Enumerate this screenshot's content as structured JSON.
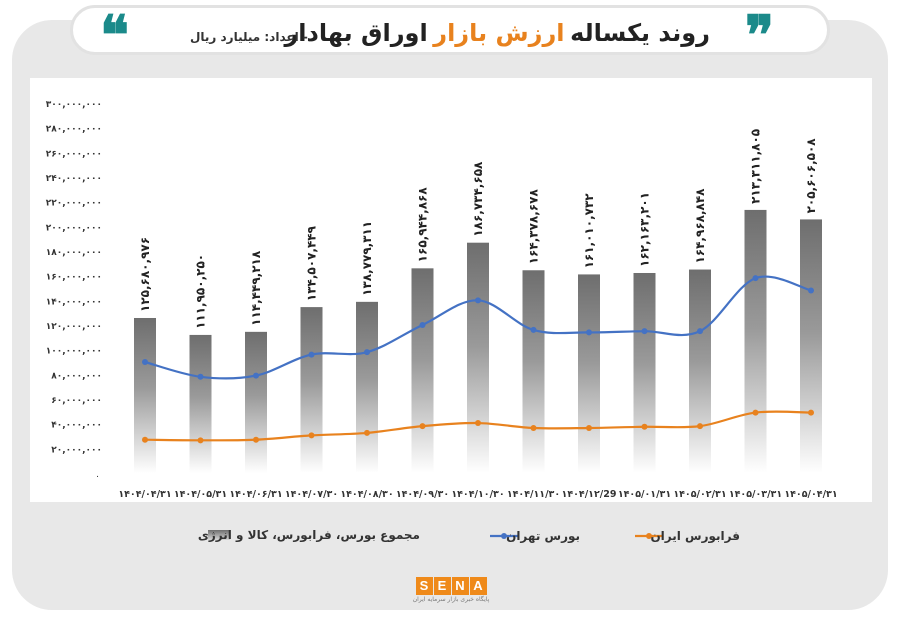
{
  "header": {
    "title_main_1": "روند یکساله",
    "title_accent": "ارزش بازار",
    "title_main_2": "اوراق بهادار",
    "subtitle": "- اعداد: میلیارد ریال"
  },
  "colors": {
    "teal": "#1b8a8a",
    "orange": "#e8821e",
    "blue": "#4472c4",
    "bar": "#7f7f7f"
  },
  "chart_data": {
    "type": "bar",
    "categories": [
      "۱۴۰۴/۰۴/۳۱",
      "۱۴۰۴/۰۵/۳۱",
      "۱۴۰۴/۰۶/۳۱",
      "۱۴۰۴/۰۷/۳۰",
      "۱۴۰۴/۰۸/۳۰",
      "۱۴۰۴/۰۹/۳۰",
      "۱۴۰۴/۱۰/۳۰",
      "۱۴۰۴/۱۱/۳۰",
      "۱۴۰۴/۱۲/29",
      "۱۴۰۵/۰۱/۳۱",
      "۱۴۰۵/۰۲/۳۱",
      "۱۴۰۵/۰۳/۳۱",
      "۱۴۰۵/۰۴/۳۱"
    ],
    "ylim": [
      0,
      300000000
    ],
    "yticks": [
      {
        "value": 20000000,
        "label": "۲۰,۰۰۰,۰۰۰"
      },
      {
        "value": 40000000,
        "label": "۴۰,۰۰۰,۰۰۰"
      },
      {
        "value": 60000000,
        "label": "۶۰,۰۰۰,۰۰۰"
      },
      {
        "value": 80000000,
        "label": "۸۰,۰۰۰,۰۰۰"
      },
      {
        "value": 100000000,
        "label": "۱۰۰,۰۰۰,۰۰۰"
      },
      {
        "value": 120000000,
        "label": "۱۲۰,۰۰۰,۰۰۰"
      },
      {
        "value": 140000000,
        "label": "۱۴۰,۰۰۰,۰۰۰"
      },
      {
        "value": 160000000,
        "label": "۱۶۰,۰۰۰,۰۰۰"
      },
      {
        "value": 180000000,
        "label": "۱۸۰,۰۰۰,۰۰۰"
      },
      {
        "value": 200000000,
        "label": "۲۰۰,۰۰۰,۰۰۰"
      },
      {
        "value": 220000000,
        "label": "۲۲۰,۰۰۰,۰۰۰"
      },
      {
        "value": 240000000,
        "label": "۲۴۰,۰۰۰,۰۰۰"
      },
      {
        "value": 260000000,
        "label": "۲۶۰,۰۰۰,۰۰۰"
      },
      {
        "value": 280000000,
        "label": "۲۸۰,۰۰۰,۰۰۰"
      },
      {
        "value": 300000000,
        "label": "۳۰۰,۰۰۰,۰۰۰"
      }
    ],
    "zero_label": "۰",
    "series": [
      {
        "name": "مجموع بورس، فرابورس، کالا و انرژی",
        "kind": "bar",
        "values": [
          125680976,
          111950250,
          114449218,
          134507449,
          138779311,
          165944868,
          186734658,
          164378678,
          161010732,
          162163201,
          164968848,
          213311805,
          205606508
        ],
        "data_labels": [
          "۱۲۵,۶۸۰,۹۷۶",
          "۱۱۱,۹۵۰,۲۵۰",
          "۱۱۴,۴۴۹,۲۱۸",
          "۱۳۴,۵۰۷,۴۴۹",
          "۱۳۸,۷۷۹,۳۱۱",
          "۱۶۵,۹۴۴,۸۶۸",
          "۱۸۶,۷۳۴,۶۵۸",
          "۱۶۴,۳۷۸,۶۷۸",
          "۱۶۱,۰۱۰,۷۳۲",
          "۱۶۲,۱۶۳,۲۰۱",
          "۱۶۴,۹۶۸,۸۴۸",
          "۲۱۳,۳۱۱,۸۰۵",
          "۲۰۵,۶۰۶,۵۰۸"
        ]
      },
      {
        "name": "بورس تهران",
        "kind": "line",
        "color": "#4472c4",
        "values": [
          90000000,
          78000000,
          79000000,
          96000000,
          98000000,
          120000000,
          140000000,
          116000000,
          114000000,
          115000000,
          115000000,
          158000000,
          148000000
        ]
      },
      {
        "name": "فرابورس ایران",
        "kind": "line",
        "color": "#e8821e",
        "values": [
          27000000,
          26500000,
          27000000,
          30500000,
          32500000,
          38000000,
          40500000,
          36500000,
          36500000,
          37500000,
          38000000,
          49000000,
          49000000
        ]
      }
    ]
  },
  "logo": {
    "letters": [
      "S",
      "E",
      "N",
      "A"
    ],
    "tagline": "پایگاه خبری بازار سرمایه ایران"
  }
}
